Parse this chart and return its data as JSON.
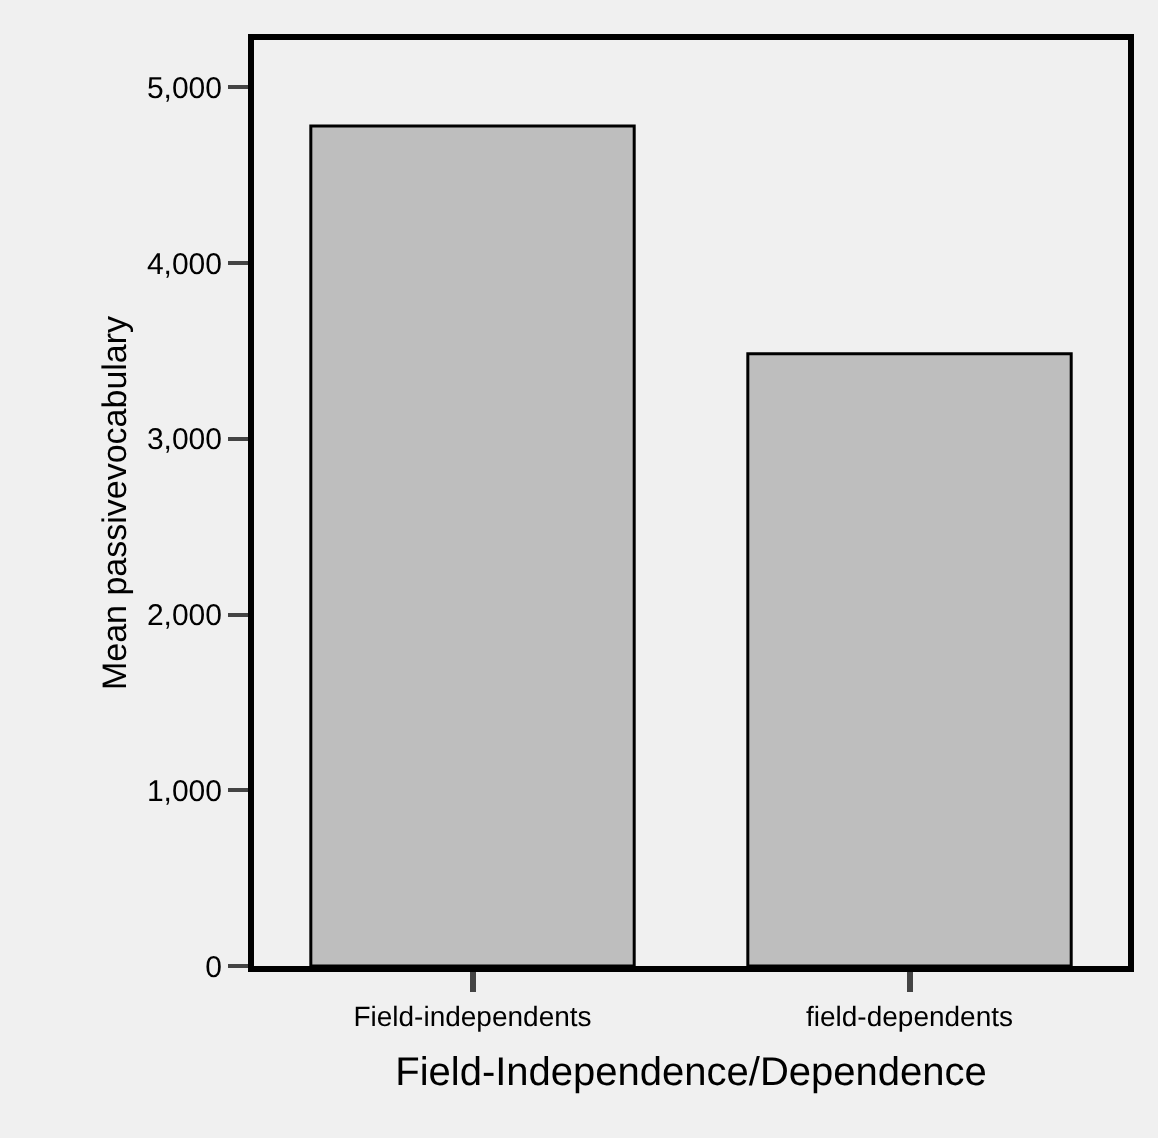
{
  "chart_data": {
    "type": "bar",
    "xlabel": "Field-Independence/Dependence",
    "ylabel": "Mean passivevocabulary",
    "categories": [
      "Field-independents",
      "field-dependents"
    ],
    "values": [
      4780,
      3485
    ],
    "color": "#bebebe",
    "ylim": [
      0,
      5270
    ],
    "yticks": [
      {
        "value": 0,
        "label": "0"
      },
      {
        "value": 1000,
        "label": "1,000"
      },
      {
        "value": 2000,
        "label": "2,000"
      },
      {
        "value": 3000,
        "label": "3,000"
      },
      {
        "value": 4000,
        "label": "4,000"
      },
      {
        "value": 5000,
        "label": "5,000"
      }
    ],
    "grid": false
  }
}
